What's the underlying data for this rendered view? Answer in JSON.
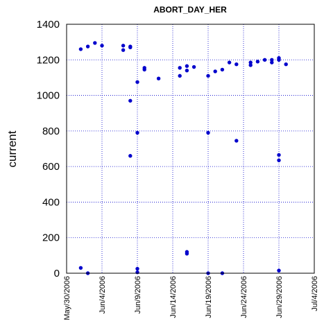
{
  "chart_data": {
    "type": "scatter",
    "title": "ABORT_DAY_HER",
    "xlabel": "",
    "ylabel": "current",
    "ylim": [
      0,
      1400
    ],
    "yticks": [
      0,
      200,
      400,
      600,
      800,
      1000,
      1200,
      1400
    ],
    "xlim": [
      "2006-05-30",
      "2006-07-04"
    ],
    "xticks": [
      "May/30/2006",
      "Jun/4/2006",
      "Jun/9/2006",
      "Jun/14/2006",
      "Jun/19/2006",
      "Jun/24/2006",
      "Jun/29/2006",
      "Jul/4/2006"
    ],
    "grid": true,
    "legend": "none",
    "color": "#0000cc",
    "series": [
      {
        "points": [
          [
            "2006-06-01 00:00",
            1260
          ],
          [
            "2006-06-01 00:00",
            30
          ],
          [
            "2006-06-02 00:00",
            1275
          ],
          [
            "2006-06-02 00:00",
            0
          ],
          [
            "2006-06-03 00:00",
            1295
          ],
          [
            "2006-06-04 00:00",
            1280
          ],
          [
            "2006-06-07 00:00",
            1280
          ],
          [
            "2006-06-07 00:00",
            1255
          ],
          [
            "2006-06-08 00:00",
            1275
          ],
          [
            "2006-06-08 00:00",
            1270
          ],
          [
            "2006-06-08 00:00",
            970
          ],
          [
            "2006-06-08 00:00",
            660
          ],
          [
            "2006-06-09 00:00",
            1075
          ],
          [
            "2006-06-09 00:00",
            790
          ],
          [
            "2006-06-09 00:00",
            25
          ],
          [
            "2006-06-09 00:00",
            5
          ],
          [
            "2006-06-10 00:00",
            1155
          ],
          [
            "2006-06-10 00:00",
            1145
          ],
          [
            "2006-06-12 00:00",
            1095
          ],
          [
            "2006-06-15 00:00",
            1155
          ],
          [
            "2006-06-15 00:00",
            1110
          ],
          [
            "2006-06-16 00:00",
            1165
          ],
          [
            "2006-06-16 00:00",
            1140
          ],
          [
            "2006-06-16 00:00",
            120
          ],
          [
            "2006-06-16 00:00",
            110
          ],
          [
            "2006-06-17 00:00",
            1160
          ],
          [
            "2006-06-19 00:00",
            1110
          ],
          [
            "2006-06-19 00:00",
            790
          ],
          [
            "2006-06-19 00:00",
            0
          ],
          [
            "2006-06-20 00:00",
            1135
          ],
          [
            "2006-06-21 00:00",
            1145
          ],
          [
            "2006-06-21 00:00",
            0
          ],
          [
            "2006-06-22 00:00",
            1185
          ],
          [
            "2006-06-23 00:00",
            1175
          ],
          [
            "2006-06-23 00:00",
            745
          ],
          [
            "2006-06-25 00:00",
            1185
          ],
          [
            "2006-06-25 00:00",
            1170
          ],
          [
            "2006-06-26 00:00",
            1190
          ],
          [
            "2006-06-27 00:00",
            1200
          ],
          [
            "2006-06-28 00:00",
            1200
          ],
          [
            "2006-06-28 00:00",
            1185
          ],
          [
            "2006-06-29 00:00",
            1210
          ],
          [
            "2006-06-29 00:00",
            1200
          ],
          [
            "2006-06-29 00:00",
            665
          ],
          [
            "2006-06-29 00:00",
            635
          ],
          [
            "2006-06-29 00:00",
            15
          ],
          [
            "2006-06-30 00:00",
            1175
          ]
        ]
      }
    ]
  }
}
